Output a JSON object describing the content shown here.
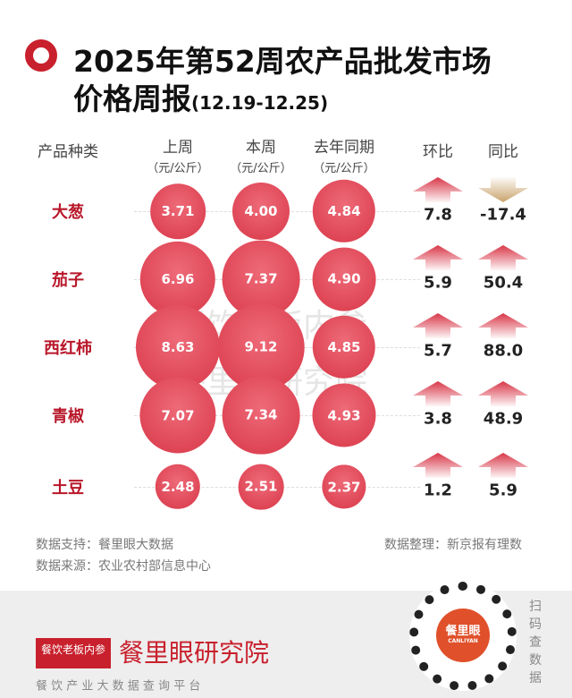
{
  "header": {
    "title_line1": "2025年第52周农产品批发市场",
    "title_line2": "价格周报",
    "date_range": "(12.19-12.25)"
  },
  "columns": {
    "category": "产品种类",
    "last_week": "上周",
    "this_week": "本周",
    "last_year": "去年同期",
    "unit": "（元/公斤）",
    "wow": "环比",
    "yoy": "同比"
  },
  "chart_data": {
    "type": "table",
    "title": "2025年第52周农产品批发市场价格周报(12.19-12.25)",
    "categories": [
      "大葱",
      "茄子",
      "西红柿",
      "青椒",
      "土豆"
    ],
    "series": [
      {
        "name": "上周",
        "unit": "元/公斤",
        "values": [
          "3.71",
          "6.96",
          "8.63",
          "7.07",
          "2.48"
        ]
      },
      {
        "name": "本周",
        "unit": "元/公斤",
        "values": [
          "4.00",
          "7.37",
          "9.12",
          "7.34",
          "2.51"
        ]
      },
      {
        "name": "去年同期",
        "unit": "元/公斤",
        "values": [
          "4.84",
          "4.90",
          "4.85",
          "4.93",
          "2.37"
        ]
      },
      {
        "name": "环比",
        "values": [
          "7.8",
          "5.9",
          "5.7",
          "3.8",
          "1.2"
        ]
      },
      {
        "name": "同比",
        "values": [
          "-17.4",
          "50.4",
          "88.0",
          "48.9",
          "5.9"
        ]
      }
    ]
  },
  "watermark": [
    "餐饮老板内参",
    "餐里眼研究院"
  ],
  "footer": {
    "support": "数据支持：餐里眼大数据",
    "source": "数据来源：农业农村部信息中心",
    "compiled": "数据整理：新京报有理数"
  },
  "brand": {
    "badge": "餐饮老板内参",
    "name": "餐里眼研究院",
    "tagline": "餐 饮 产 业 大 数 据 查 询 平 台",
    "qr_label": "餐里眼",
    "qr_sub": "CANLIYAN",
    "scan": "扫码查数据"
  },
  "colors": {
    "accent": "#c8202c",
    "up": "#d83748",
    "down": "#c9a36b"
  }
}
